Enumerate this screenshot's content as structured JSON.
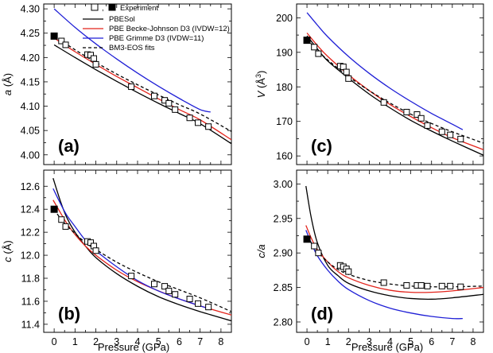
{
  "legend": {
    "markers_separator": ",",
    "experiment": "Experiment",
    "pbesol": "PBESol",
    "pbe_bj": "PBE Becke-Johnson D3 (IVDW=12)",
    "pbe_grimme": "PBE Grimme D3 (IVDW=11)",
    "bm3": "BM3-EOS fits"
  },
  "colors": {
    "pbesol": "#000000",
    "pbe_bj": "#e3231b",
    "pbe_grimme": "#1f1fd6",
    "bm3": "#000000",
    "data_marker": "#000000"
  },
  "shared_xlabel": "Pressure (GPa)",
  "chart_data": [
    {
      "id": "a",
      "type": "line",
      "panel_label": "(a)",
      "title": "",
      "xlabel": "",
      "ylabel_main": "a",
      "ylabel_unit": " (Å)",
      "xlim": [
        -0.5,
        8.5
      ],
      "ylim": [
        3.98,
        4.31
      ],
      "xticks": [
        0,
        1,
        2,
        3,
        4,
        5,
        6,
        7,
        8
      ],
      "yticks": [
        4.0,
        4.05,
        4.1,
        4.15,
        4.2,
        4.25,
        4.3
      ],
      "ytick_labels": [
        "4.00",
        "4.05",
        "4.10",
        "4.15",
        "4.20",
        "4.25",
        "4.30"
      ],
      "show_xticklabels": false,
      "series": [
        {
          "name": "PBESol",
          "style": "pbesol",
          "x": [
            0,
            1,
            2,
            3,
            4,
            5,
            6,
            7,
            8.5
          ],
          "y": [
            4.226,
            4.2,
            4.175,
            4.151,
            4.128,
            4.106,
            4.085,
            4.064,
            4.023
          ]
        },
        {
          "name": "PBE Becke-Johnson D3 (IVDW=12)",
          "style": "pbe_bj",
          "x": [
            0,
            1,
            2,
            3,
            4,
            5,
            6,
            7,
            8.5
          ],
          "y": [
            4.24,
            4.212,
            4.186,
            4.161,
            4.138,
            4.115,
            4.093,
            4.072,
            4.031
          ]
        },
        {
          "name": "PBE Grimme D3 (IVDW=11)",
          "style": "pbe_grimme",
          "x": [
            0,
            1,
            2,
            3,
            4,
            5,
            6,
            7,
            7.5
          ],
          "y": [
            4.3,
            4.262,
            4.228,
            4.197,
            4.168,
            4.141,
            4.116,
            4.093,
            4.088
          ]
        },
        {
          "name": "BM3-EOS fits",
          "style": "bm3",
          "x": [
            0,
            1,
            2,
            3,
            4,
            5,
            6,
            7,
            8.5
          ],
          "y": [
            4.244,
            4.216,
            4.19,
            4.166,
            4.144,
            4.123,
            4.103,
            4.084,
            4.048
          ]
        }
      ],
      "experiment": {
        "x": [
          0
        ],
        "y": [
          4.244
        ]
      },
      "points": {
        "x": [
          0.35,
          0.55,
          1.6,
          1.75,
          1.9,
          2.0,
          3.7,
          4.8,
          5.3,
          5.5,
          5.8,
          6.5,
          6.9,
          7.4
        ],
        "y": [
          4.234,
          4.226,
          4.206,
          4.205,
          4.198,
          4.186,
          4.14,
          4.121,
          4.112,
          4.106,
          4.093,
          4.076,
          4.066,
          4.058
        ]
      }
    },
    {
      "id": "b",
      "type": "line",
      "panel_label": "(b)",
      "title": "",
      "xlabel": "",
      "ylabel_main": "c",
      "ylabel_unit": " (Å)",
      "xlim": [
        -0.5,
        8.5
      ],
      "ylim": [
        11.33,
        12.74
      ],
      "xticks": [
        0,
        1,
        2,
        3,
        4,
        5,
        6,
        7,
        8
      ],
      "yticks": [
        11.4,
        11.6,
        11.8,
        12.0,
        12.2,
        12.4,
        12.6
      ],
      "ytick_labels": [
        "11.4",
        "11.6",
        "11.8",
        "12.0",
        "12.2",
        "12.4",
        "12.6"
      ],
      "show_xticklabels": true,
      "xtick_labels": [
        "0",
        "1",
        "2",
        "3",
        "4",
        "5",
        "6",
        "7",
        "8"
      ],
      "series": [
        {
          "name": "PBESol",
          "style": "pbesol",
          "x": [
            -0.05,
            0.3,
            0.6,
            1,
            1.5,
            2,
            3,
            4,
            5,
            6,
            7,
            8.5
          ],
          "y": [
            12.67,
            12.47,
            12.33,
            12.2,
            12.08,
            11.98,
            11.84,
            11.73,
            11.64,
            11.57,
            11.51,
            11.43
          ]
        },
        {
          "name": "PBE Becke-Johnson D3 (IVDW=12)",
          "style": "pbe_bj",
          "x": [
            -0.05,
            0.3,
            0.6,
            1,
            1.5,
            2,
            3,
            4,
            5,
            6,
            7,
            8.5
          ],
          "y": [
            12.48,
            12.37,
            12.28,
            12.18,
            12.08,
            12.0,
            11.87,
            11.77,
            11.69,
            11.62,
            11.56,
            11.48
          ]
        },
        {
          "name": "PBE Grimme D3 (IVDW=11)",
          "style": "pbe_grimme",
          "x": [
            -0.05,
            0.3,
            0.6,
            1,
            1.5,
            2,
            3,
            4,
            5,
            6,
            7,
            7.5
          ],
          "y": [
            12.58,
            12.45,
            12.35,
            12.25,
            12.13,
            12.04,
            11.9,
            11.78,
            11.69,
            11.62,
            11.56,
            11.53
          ]
        },
        {
          "name": "BM3-EOS fits",
          "style": "bm3",
          "x": [
            0,
            0.3,
            0.6,
            1,
            1.5,
            2,
            3,
            4,
            5,
            6,
            7,
            8.5
          ],
          "y": [
            12.4,
            12.32,
            12.26,
            12.19,
            12.11,
            12.05,
            11.94,
            11.85,
            11.77,
            11.7,
            11.63,
            11.51
          ]
        }
      ],
      "experiment": {
        "x": [
          0
        ],
        "y": [
          12.4
        ]
      },
      "points": {
        "x": [
          0.35,
          0.55,
          1.6,
          1.75,
          1.9,
          2.0,
          3.7,
          4.8,
          5.3,
          5.5,
          5.8,
          6.5,
          6.9,
          7.4
        ],
        "y": [
          12.31,
          12.25,
          12.12,
          12.11,
          12.08,
          12.04,
          11.82,
          11.75,
          11.73,
          11.69,
          11.66,
          11.62,
          11.58,
          11.55
        ]
      }
    },
    {
      "id": "c",
      "type": "line",
      "panel_label": "(c)",
      "title": "",
      "xlabel": "",
      "ylabel_main": "V",
      "ylabel_unit": " (Å",
      "ylabel_sup": "3",
      "ylabel_close": ")",
      "xlim": [
        -0.5,
        8.5
      ],
      "ylim": [
        157.5,
        204
      ],
      "xticks": [
        0,
        1,
        2,
        3,
        4,
        5,
        6,
        7,
        8
      ],
      "yticks": [
        160,
        170,
        180,
        190,
        200
      ],
      "ytick_labels": [
        "160",
        "170",
        "180",
        "190",
        "200"
      ],
      "show_xticklabels": false,
      "series": [
        {
          "name": "PBESol",
          "style": "pbesol",
          "x": [
            0,
            0.5,
            1,
            2,
            3,
            4,
            5,
            6,
            7,
            8.5
          ],
          "y": [
            194.8,
            191.0,
            187.5,
            182.5,
            177.9,
            173.9,
            170.3,
            167.2,
            164.3,
            160.2
          ]
        },
        {
          "name": "PBE Becke-Johnson D3 (IVDW=12)",
          "style": "pbe_bj",
          "x": [
            0,
            0.5,
            1,
            2,
            3,
            4,
            5,
            6,
            7,
            8.5
          ],
          "y": [
            195.6,
            192.0,
            188.8,
            183.5,
            178.9,
            174.9,
            171.4,
            168.2,
            165.3,
            161.8
          ]
        },
        {
          "name": "PBE Grimme D3 (IVDW=11)",
          "style": "pbe_grimme",
          "x": [
            0,
            0.5,
            1,
            2,
            3,
            4,
            5,
            6,
            7,
            7.5
          ],
          "y": [
            201.5,
            197.9,
            194.5,
            188.8,
            183.9,
            179.6,
            175.8,
            172.3,
            169.2,
            167.6
          ]
        },
        {
          "name": "BM3-EOS fits",
          "style": "bm3",
          "x": [
            0,
            0.5,
            1,
            2,
            3,
            4,
            5,
            6,
            7,
            8.5
          ],
          "y": [
            193.8,
            190.6,
            187.8,
            183.0,
            178.9,
            175.3,
            172.1,
            169.4,
            167.0,
            163.7
          ]
        }
      ],
      "experiment": {
        "x": [
          0
        ],
        "y": [
          193.5
        ]
      },
      "points": {
        "x": [
          0.35,
          0.55,
          1.6,
          1.75,
          1.9,
          2.0,
          3.7,
          4.8,
          5.3,
          5.5,
          5.8,
          6.5,
          6.9,
          7.4
        ],
        "y": [
          191.5,
          189.6,
          186.0,
          185.8,
          184.3,
          182.4,
          175.5,
          172.7,
          172.0,
          170.9,
          168.8,
          167.0,
          166.1,
          164.9
        ]
      }
    },
    {
      "id": "d",
      "type": "line",
      "panel_label": "(d)",
      "title": "",
      "xlabel": "",
      "ylabel_main": "c/a",
      "ylabel_unit": "",
      "xlim": [
        -0.5,
        8.5
      ],
      "ylim": [
        2.785,
        3.02
      ],
      "xticks": [
        0,
        1,
        2,
        3,
        4,
        5,
        6,
        7,
        8
      ],
      "yticks": [
        2.8,
        2.85,
        2.9,
        2.95,
        3.0
      ],
      "ytick_labels": [
        "2.80",
        "2.85",
        "2.90",
        "2.95",
        "3.00"
      ],
      "show_xticklabels": true,
      "xtick_labels": [
        "0",
        "1",
        "2",
        "3",
        "4",
        "5",
        "6",
        "7",
        "8"
      ],
      "series": [
        {
          "name": "PBESol",
          "style": "pbesol",
          "x": [
            -0.05,
            0.2,
            0.5,
            1,
            1.5,
            2,
            3,
            4,
            5,
            6,
            7,
            8.5
          ],
          "y": [
            2.997,
            2.952,
            2.915,
            2.882,
            2.867,
            2.856,
            2.845,
            2.838,
            2.834,
            2.833,
            2.835,
            2.84
          ]
        },
        {
          "name": "PBE Becke-Johnson D3 (IVDW=12)",
          "style": "pbe_bj",
          "x": [
            -0.05,
            0.2,
            0.5,
            1,
            1.5,
            2,
            3,
            4,
            5,
            6,
            7,
            8.5
          ],
          "y": [
            2.94,
            2.922,
            2.905,
            2.887,
            2.873,
            2.864,
            2.853,
            2.846,
            2.843,
            2.843,
            2.845,
            2.85
          ]
        },
        {
          "name": "PBE Grimme D3 (IVDW=11)",
          "style": "pbe_grimme",
          "x": [
            -0.05,
            0.2,
            0.5,
            1,
            1.5,
            2,
            3,
            4,
            5,
            6,
            7,
            7.5
          ],
          "y": [
            2.933,
            2.915,
            2.896,
            2.875,
            2.859,
            2.847,
            2.831,
            2.82,
            2.813,
            2.808,
            2.805,
            2.805
          ]
        },
        {
          "name": "BM3-EOS fits",
          "style": "bm3",
          "x": [
            0,
            0.2,
            0.5,
            1,
            1.5,
            2,
            3,
            4,
            5,
            6,
            7,
            8.5
          ],
          "y": [
            2.925,
            2.915,
            2.902,
            2.887,
            2.876,
            2.869,
            2.86,
            2.855,
            2.852,
            2.851,
            2.851,
            2.852
          ]
        }
      ],
      "experiment": {
        "x": [
          0
        ],
        "y": [
          2.92
        ]
      },
      "points": {
        "x": [
          0.35,
          0.55,
          1.6,
          1.75,
          1.9,
          2.0,
          3.7,
          4.8,
          5.3,
          5.5,
          5.8,
          6.5,
          6.9,
          7.4
        ],
        "y": [
          2.91,
          2.9,
          2.882,
          2.88,
          2.877,
          2.873,
          2.857,
          2.853,
          2.853,
          2.853,
          2.852,
          2.852,
          2.852,
          2.851
        ]
      }
    }
  ]
}
